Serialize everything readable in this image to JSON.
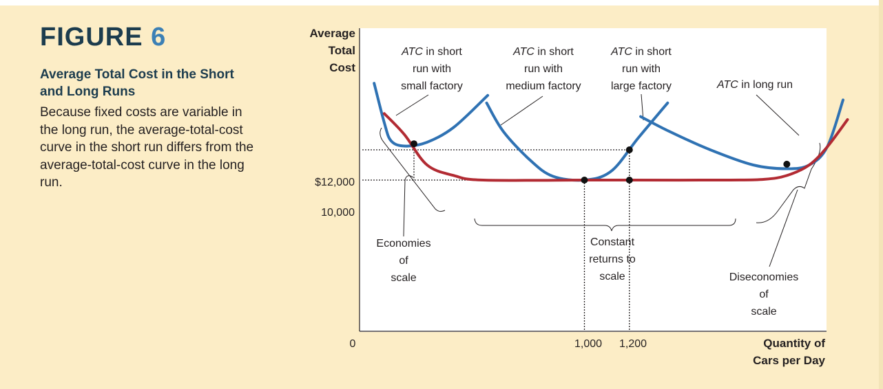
{
  "figure": {
    "label": "FIGURE",
    "number": "6",
    "subtitle": "Average Total Cost in the Short and Long Runs",
    "caption": "Because fixed costs are variable in the long run, the average-total-cost curve in the short run differs from the average-total-cost curve in the long run."
  },
  "colors": {
    "short_run": "#2f72b3",
    "long_run": "#b22b33",
    "panel": "#fcedc6",
    "title": "#1c3c4e",
    "number": "#3c80b5"
  },
  "chart_data": {
    "type": "line",
    "ylabel": [
      "Average",
      "Total",
      "Cost"
    ],
    "xlabel": [
      "Quantity of",
      "Cars per Day"
    ],
    "origin_label": "0",
    "y_ticks": [
      {
        "value": 12000,
        "label": "$12,000"
      },
      {
        "value": 10000,
        "label": "10,000"
      }
    ],
    "x_ticks": [
      {
        "value": 1000,
        "label": "1,000"
      },
      {
        "value": 1200,
        "label": "1,200"
      }
    ],
    "series": [
      {
        "name": "ATC in short run with small factory",
        "label_lines": [
          "in short",
          "run with",
          "small factory"
        ],
        "italic_prefix": "ATC",
        "points": [
          [
            65,
            16400
          ],
          [
            110,
            13800
          ],
          [
            140,
            12600
          ],
          [
            200,
            12250
          ],
          [
            300,
            12500
          ],
          [
            420,
            13500
          ],
          [
            570,
            15600
          ]
        ]
      },
      {
        "name": "ATC in short run with medium factory",
        "label_lines": [
          "in short",
          "run with",
          "medium factory"
        ],
        "italic_prefix": "ATC",
        "points": [
          [
            565,
            15100
          ],
          [
            640,
            13200
          ],
          [
            760,
            11300
          ],
          [
            860,
            10250
          ],
          [
            1000,
            10000
          ],
          [
            1120,
            10600
          ],
          [
            1240,
            12800
          ],
          [
            1370,
            15100
          ]
        ]
      },
      {
        "name": "ATC in short run with large factory",
        "label_lines": [
          "in short",
          "run with",
          "large factory"
        ],
        "italic_prefix": "ATC",
        "points": [
          [
            1250,
            14200
          ],
          [
            1380,
            13200
          ],
          [
            1560,
            12000
          ],
          [
            1750,
            11000
          ],
          [
            1900,
            10750
          ],
          [
            2000,
            11000
          ],
          [
            2080,
            12200
          ],
          [
            2150,
            15300
          ]
        ]
      },
      {
        "name": "ATC in long run",
        "label_lines": [
          "in long run"
        ],
        "italic_prefix": "ATC",
        "points": [
          [
            110,
            14400
          ],
          [
            200,
            13000
          ],
          [
            300,
            11000
          ],
          [
            420,
            10300
          ],
          [
            550,
            10000
          ],
          [
            1000,
            10000
          ],
          [
            1200,
            10000
          ],
          [
            1650,
            10000
          ],
          [
            1800,
            10050
          ],
          [
            1900,
            10300
          ],
          [
            2000,
            11000
          ],
          [
            2080,
            12200
          ],
          [
            2170,
            14000
          ]
        ]
      }
    ],
    "points_marked": [
      [
        242,
        12400
      ],
      [
        1000,
        10000
      ],
      [
        1200,
        10000
      ],
      [
        1200,
        12000
      ],
      [
        1900,
        11050
      ]
    ],
    "regions": [
      {
        "label_lines": [
          "Economies",
          "of",
          "scale"
        ]
      },
      {
        "label_lines": [
          "Constant",
          "returns to",
          "scale"
        ]
      },
      {
        "label_lines": [
          "Diseconomies",
          "of",
          "scale"
        ]
      }
    ],
    "xlim": [
      0,
      2100
    ],
    "ylim": [
      0,
      17000
    ],
    "grid": false
  }
}
